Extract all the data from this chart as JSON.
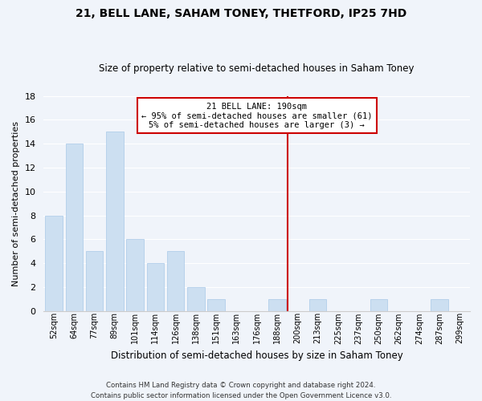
{
  "title": "21, BELL LANE, SAHAM TONEY, THETFORD, IP25 7HD",
  "subtitle": "Size of property relative to semi-detached houses in Saham Toney",
  "xlabel": "Distribution of semi-detached houses by size in Saham Toney",
  "ylabel": "Number of semi-detached properties",
  "categories": [
    "52sqm",
    "64sqm",
    "77sqm",
    "89sqm",
    "101sqm",
    "114sqm",
    "126sqm",
    "138sqm",
    "151sqm",
    "163sqm",
    "176sqm",
    "188sqm",
    "200sqm",
    "213sqm",
    "225sqm",
    "237sqm",
    "250sqm",
    "262sqm",
    "274sqm",
    "287sqm",
    "299sqm"
  ],
  "values": [
    8,
    14,
    5,
    15,
    6,
    4,
    5,
    2,
    1,
    0,
    0,
    1,
    0,
    1,
    0,
    0,
    1,
    0,
    0,
    1,
    0
  ],
  "bar_color": "#ccdff1",
  "bar_edge_color": "#a8c8e8",
  "annotation_box_color": "#cc0000",
  "vline_color": "#cc0000",
  "annotation_title": "21 BELL LANE: 190sqm",
  "annotation_line1": "← 95% of semi-detached houses are smaller (61)",
  "annotation_line2": "5% of semi-detached houses are larger (3) →",
  "vline_x": 11.5,
  "ylim": [
    0,
    18
  ],
  "yticks": [
    0,
    2,
    4,
    6,
    8,
    10,
    12,
    14,
    16,
    18
  ],
  "footer_line1": "Contains HM Land Registry data © Crown copyright and database right 2024.",
  "footer_line2": "Contains public sector information licensed under the Open Government Licence v3.0.",
  "background_color": "#f0f4fa",
  "grid_color": "#ffffff"
}
